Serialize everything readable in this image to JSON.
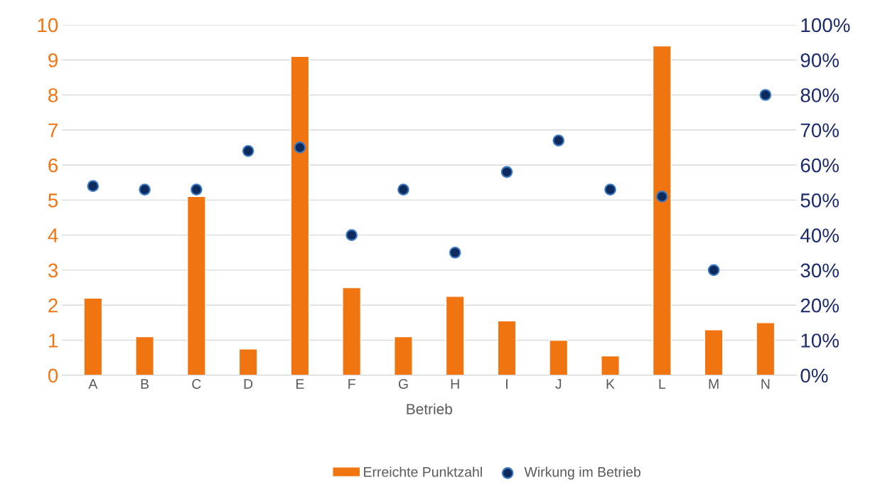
{
  "chart_data": {
    "type": "bar",
    "xlabel": "Betrieb",
    "categories": [
      "A",
      "B",
      "C",
      "D",
      "E",
      "F",
      "G",
      "H",
      "I",
      "J",
      "K",
      "L",
      "M",
      "N"
    ],
    "series": [
      {
        "name": "Erreichte Punktzahl",
        "color": "#f07510",
        "values": [
          2.2,
          1.1,
          5.1,
          0.75,
          9.1,
          2.5,
          1.1,
          2.25,
          1.55,
          1.0,
          0.55,
          9.4,
          1.3,
          1.5
        ]
      },
      {
        "name": "Wirkung im Betrieb",
        "type": "scatter",
        "axis": "y2",
        "color": "#0d2a5c",
        "values": [
          54,
          53,
          53,
          64,
          65,
          40,
          53,
          35,
          58,
          67,
          53,
          51,
          30,
          80
        ]
      }
    ],
    "ylim": [
      0,
      10
    ],
    "yticks": [
      0,
      1,
      2,
      3,
      4,
      5,
      6,
      7,
      8,
      9,
      10
    ],
    "y2lim": [
      0,
      100
    ],
    "y2ticks": [
      {
        "value": 0,
        "label": "0%"
      },
      {
        "value": 10,
        "label": "10%"
      },
      {
        "value": 20,
        "label": "20%"
      },
      {
        "value": 30,
        "label": "30%"
      },
      {
        "value": 40,
        "label": "40%"
      },
      {
        "value": 50,
        "label": "50%"
      },
      {
        "value": 60,
        "label": "60%"
      },
      {
        "value": 70,
        "label": "70%"
      },
      {
        "value": 80,
        "label": "80%"
      },
      {
        "value": 90,
        "label": "90%"
      },
      {
        "value": 100,
        "label": "100%"
      }
    ],
    "grid": "y",
    "legend": "bottom",
    "marker": "circle"
  }
}
